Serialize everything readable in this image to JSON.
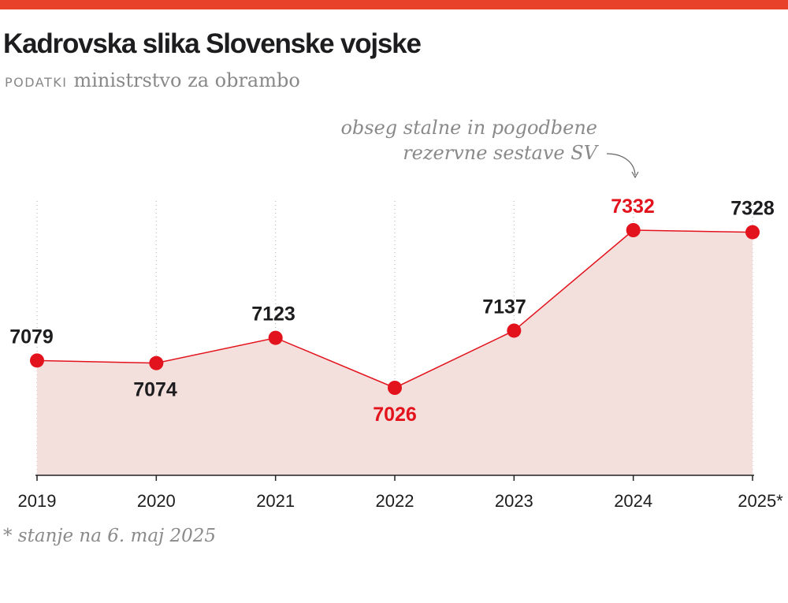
{
  "header": {
    "title": "Kadrovska slika Slovenske vojske",
    "source_label": "PODATKI",
    "source": "ministrstvo za obrambo"
  },
  "footnote": "* stanje na 6. maj 2025",
  "colors": {
    "accent_bar": "#e8432a",
    "highlight": "#e3131e",
    "fill": "#f3e0dc",
    "text": "#1d1d1f"
  },
  "chart_data": {
    "type": "area",
    "title": "Kadrovska slika Slovenske vojske",
    "categories": [
      "2019",
      "2020",
      "2021",
      "2022",
      "2023",
      "2024",
      "2025*"
    ],
    "series": [
      {
        "name": "obseg stalne in pogodbene rezervne sestave SV",
        "values": [
          7079,
          7074,
          7123,
          7026,
          7137,
          7332,
          7328
        ]
      }
    ],
    "data_labels": [
      "7079",
      "7074",
      "7123",
      "7026",
      "7137",
      "7332",
      "7328"
    ],
    "highlighted": [
      "2022",
      "2024"
    ],
    "annotation": {
      "lines": [
        "obseg stalne in pogodbene",
        "rezervne sestave SV"
      ],
      "points_to": "2024"
    },
    "xlabel": "",
    "ylabel": "",
    "y_axis_visible": false,
    "grid": "vertical dotted"
  }
}
